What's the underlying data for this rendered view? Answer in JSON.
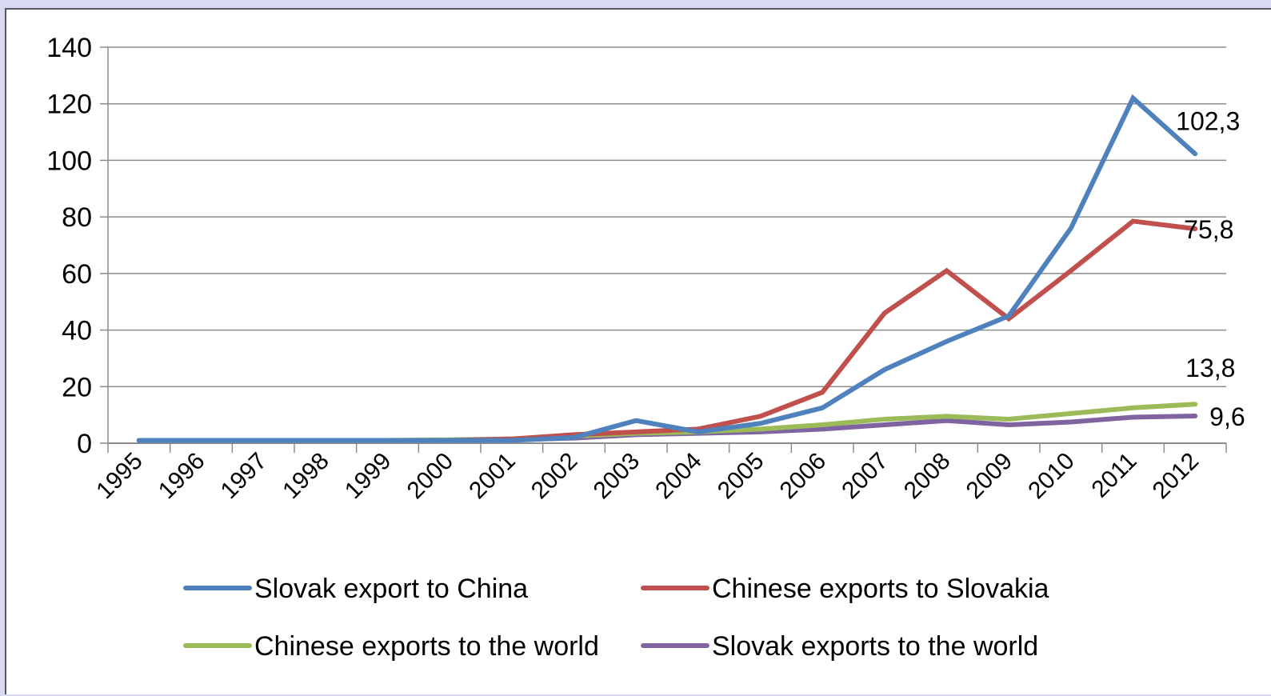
{
  "chart_data": {
    "type": "line",
    "title": "",
    "xlabel": "",
    "ylabel": "",
    "ylim": [
      0,
      140
    ],
    "y_ticks": [
      0,
      20,
      40,
      60,
      80,
      100,
      120,
      140
    ],
    "categories": [
      "1995",
      "1996",
      "1997",
      "1998",
      "1999",
      "2000",
      "2001",
      "2002",
      "2003",
      "2004",
      "2005",
      "2006",
      "2007",
      "2008",
      "2009",
      "2010",
      "2011",
      "2012"
    ],
    "grid": "horizontal",
    "legend_position": "bottom",
    "series": [
      {
        "name": "Slovak export to China",
        "color": "#4f81bd",
        "values": [
          1,
          1,
          1,
          1,
          1,
          1,
          1,
          2,
          8,
          4,
          7,
          12.5,
          26,
          36,
          45,
          76,
          122,
          102.3
        ],
        "end_label": "102,3"
      },
      {
        "name": "Chinese exports to Slovakia",
        "color": "#c0504d",
        "values": [
          1,
          1,
          1,
          1,
          1,
          1,
          1.5,
          3,
          4,
          5,
          9.5,
          18,
          46,
          61,
          44,
          61,
          78.5,
          75.8
        ],
        "end_label": "75,8"
      },
      {
        "name": "Chinese exports to the world",
        "color": "#9bbb59",
        "values": [
          1,
          1,
          1,
          1,
          1,
          1.2,
          1.5,
          2.5,
          3.5,
          4,
          5,
          6.5,
          8.5,
          9.5,
          8.5,
          10.5,
          12.5,
          13.8
        ],
        "end_label": "13,8"
      },
      {
        "name": "Slovak exports to the world",
        "color": "#8064a2",
        "values": [
          1,
          1,
          1,
          1,
          1,
          1,
          1.2,
          1.8,
          3,
          3.5,
          4,
          5,
          6.5,
          8,
          6.5,
          7.5,
          9.2,
          9.6
        ],
        "end_label": "9,6"
      }
    ]
  }
}
